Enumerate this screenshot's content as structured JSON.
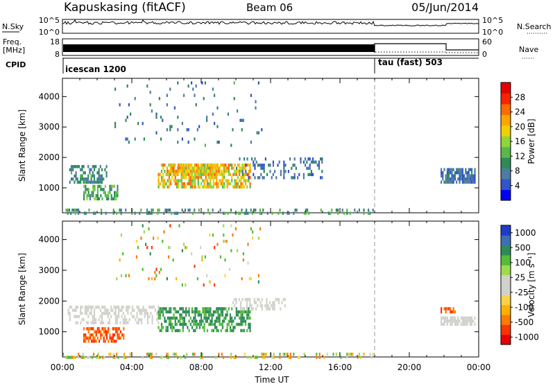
{
  "header": {
    "station": "Kapuskasing (fitACF)",
    "beam": "Beam 06",
    "date": "05/Jun/2014"
  },
  "panels": {
    "nsky": {
      "label": "N.Sky",
      "left_ticks": [
        "10^5",
        "10^0"
      ],
      "right_ticks": [
        "10^5",
        "10^0"
      ],
      "right_label": "N.Search"
    },
    "freq": {
      "label_line1": "Freq.",
      "label_line2": "[MHz]",
      "left_ticks": [
        "18",
        "8"
      ],
      "right_ticks": [
        "60",
        "0"
      ],
      "right_label": "Nave"
    },
    "cpid": {
      "label": "CPID",
      "segments": [
        {
          "name": "icescan 1200",
          "start_h": 0,
          "end_h": 18
        },
        {
          "name": "tau (fast) 503",
          "start_h": 18,
          "end_h": 24
        }
      ]
    }
  },
  "colors": {
    "power": [
      "#0000ff",
      "#3355cc",
      "#4e7aa6",
      "#2e8b57",
      "#5ab84a",
      "#8fd63a",
      "#f0d000",
      "#ffa500",
      "#ff6a00",
      "#ff2200",
      "#e60000"
    ],
    "velocity_neg": [
      "#e60000",
      "#ff3300",
      "#ff7a00",
      "#ffb000",
      "#ffd24a",
      "#d2d2cc"
    ],
    "velocity_pos": [
      "#d2d2cc",
      "#9edc4e",
      "#55bb3a",
      "#2e8b57",
      "#3c6fb4",
      "#1e3cc8"
    ]
  },
  "chart_data": [
    {
      "type": "heatmap",
      "name": "power",
      "ylabel": "Slant Range [km]",
      "xlabel": "",
      "ylim": [
        180,
        4600
      ],
      "xlim": [
        0,
        24
      ],
      "yticks": [
        1000,
        2000,
        3000,
        4000
      ],
      "xticks": [
        "00:00",
        "04:00",
        "08:00",
        "12:00",
        "16:00",
        "20:00",
        "00:00"
      ],
      "colorbar": {
        "label": "Power [dB]",
        "ticks": [
          4,
          8,
          12,
          16,
          20,
          24,
          28
        ],
        "range": [
          0,
          32
        ]
      },
      "regions": [
        {
          "t": [
            0.3,
            2.5
          ],
          "r": [
            1200,
            1750
          ],
          "v": [
            6,
            12
          ],
          "d": 0.5
        },
        {
          "t": [
            1.2,
            3.2
          ],
          "r": [
            680,
            1100
          ],
          "v": [
            8,
            15
          ],
          "d": 0.55
        },
        {
          "t": [
            5.5,
            10.8
          ],
          "r": [
            1050,
            1800
          ],
          "v": [
            12,
            26
          ],
          "d": 0.65
        },
        {
          "t": [
            6.0,
            9.5
          ],
          "r": [
            1400,
            1800
          ],
          "v": [
            16,
            24
          ],
          "d": 0.6
        },
        {
          "t": [
            10.0,
            15.0
          ],
          "r": [
            1300,
            2000
          ],
          "v": [
            4,
            10
          ],
          "d": 0.25
        },
        {
          "t": [
            0.0,
            18.0
          ],
          "r": [
            190,
            320
          ],
          "v": [
            6,
            14
          ],
          "d": 0.3
        },
        {
          "t": [
            21.8,
            23.8
          ],
          "r": [
            1200,
            1650
          ],
          "v": [
            4,
            10
          ],
          "d": 0.75
        },
        {
          "t": [
            3.0,
            11.5
          ],
          "r": [
            2400,
            4500
          ],
          "v": [
            4,
            12
          ],
          "d": 0.04
        }
      ]
    },
    {
      "type": "heatmap",
      "name": "velocity",
      "ylabel": "Slant Range [km]",
      "xlabel": "Time UT",
      "ylim": [
        180,
        4600
      ],
      "xlim": [
        0,
        24
      ],
      "yticks": [
        1000,
        2000,
        3000,
        4000
      ],
      "xticks": [
        "00:00",
        "04:00",
        "08:00",
        "12:00",
        "16:00",
        "20:00",
        "00:00"
      ],
      "colorbar": {
        "label": "Velocity [m s⁻¹]",
        "ticks": [
          "1000",
          "500",
          "100",
          "25",
          "-25",
          "-100",
          "-500",
          "-1000"
        ]
      },
      "regions": [
        {
          "t": [
            0.3,
            5.5
          ],
          "r": [
            1300,
            1850
          ],
          "v": [
            -20,
            20
          ],
          "d": 0.5
        },
        {
          "t": [
            1.2,
            3.5
          ],
          "r": [
            680,
            1150
          ],
          "v": [
            -400,
            -120
          ],
          "d": 0.6
        },
        {
          "t": [
            5.5,
            10.8
          ],
          "r": [
            1050,
            1800
          ],
          "v": [
            100,
            500
          ],
          "d": 0.6
        },
        {
          "t": [
            9.8,
            12.8
          ],
          "r": [
            1700,
            2100
          ],
          "v": [
            -20,
            20
          ],
          "d": 0.4
        },
        {
          "t": [
            0.0,
            18.0
          ],
          "r": [
            190,
            320
          ],
          "v": [
            -200,
            200
          ],
          "d": 0.3
        },
        {
          "t": [
            21.8,
            23.8
          ],
          "r": [
            1200,
            1500
          ],
          "v": [
            -20,
            20
          ],
          "d": 0.8
        },
        {
          "t": [
            21.8,
            22.6
          ],
          "r": [
            1600,
            1800
          ],
          "v": [
            -300,
            -150
          ],
          "d": 0.6
        },
        {
          "t": [
            3.0,
            11.5
          ],
          "r": [
            2400,
            4500
          ],
          "v": [
            -300,
            300
          ],
          "d": 0.04
        }
      ]
    }
  ]
}
